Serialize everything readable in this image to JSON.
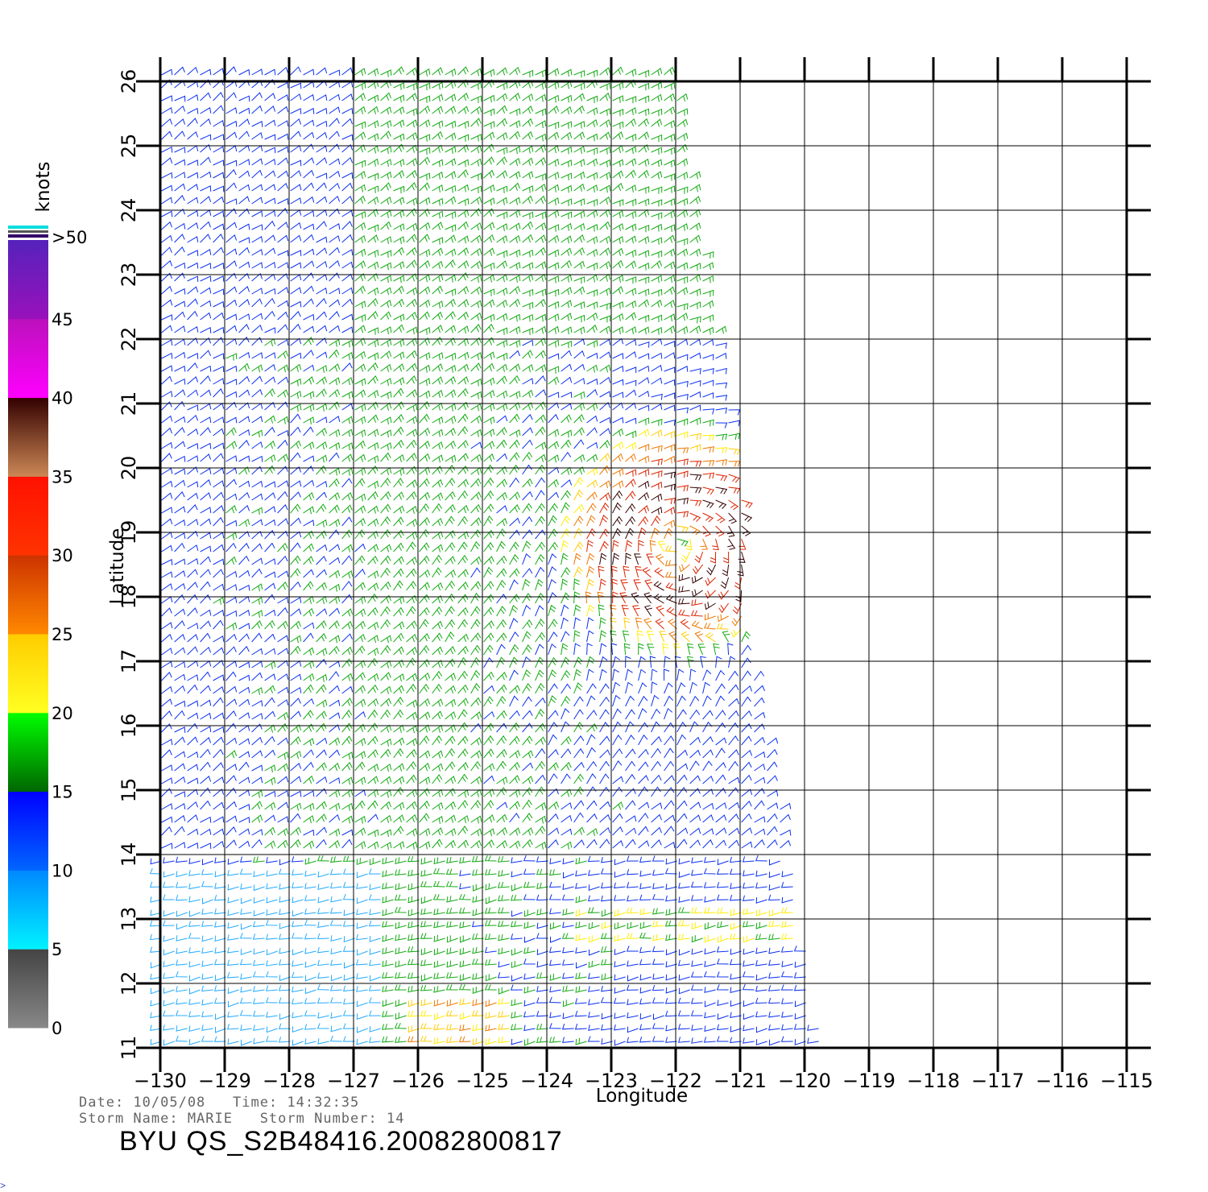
{
  "colorbar": {
    "unit": "knots",
    "labels": [
      "0",
      "5",
      "10",
      "15",
      "20",
      "25",
      "30",
      "35",
      "40",
      "45",
      ">50"
    ],
    "stops": [
      {
        "from": 0,
        "to": 5,
        "top": "#444444",
        "bottom": "#888888"
      },
      {
        "from": 5,
        "to": 10,
        "top": "#0088ff",
        "bottom": "#00f2ff"
      },
      {
        "from": 10,
        "to": 15,
        "top": "#0000ff",
        "bottom": "#0066ff"
      },
      {
        "from": 15,
        "to": 20,
        "top": "#00ff00",
        "bottom": "#006600"
      },
      {
        "from": 20,
        "to": 25,
        "top": "#ffcc00",
        "bottom": "#ffff22"
      },
      {
        "from": 25,
        "to": 30,
        "top": "#cc3300",
        "bottom": "#ff8800"
      },
      {
        "from": 30,
        "to": 35,
        "top": "#ff1100",
        "bottom": "#ff3300"
      },
      {
        "from": 35,
        "to": 40,
        "top": "#330000",
        "bottom": "#cc8855"
      },
      {
        "from": 40,
        "to": 45,
        "top": "#bb11bb",
        "bottom": "#ff00ff"
      },
      {
        "from": 45,
        "to": 50,
        "top": "#5522bb",
        "bottom": "#9911bb"
      }
    ]
  },
  "map": {
    "lon_range": [
      -130,
      -115
    ],
    "lat_range": [
      11,
      26
    ],
    "lon_ticks": [
      -130,
      -129,
      -128,
      -127,
      -126,
      -125,
      -124,
      -123,
      -122,
      -121,
      -120,
      -119,
      -118,
      -117,
      -116,
      -115
    ],
    "lat_ticks": [
      11,
      12,
      13,
      14,
      15,
      16,
      17,
      18,
      19,
      20,
      21,
      22,
      23,
      24,
      25,
      26
    ],
    "xlabel": "Longitude",
    "ylabel": "Latitude",
    "storm_center": {
      "lon": -122.0,
      "lat": 18.85
    },
    "swath_east_edge": [
      {
        "lat": 26,
        "lon": -122.0
      },
      {
        "lat": 23,
        "lon": -121.5
      },
      {
        "lat": 20,
        "lon": -121.0
      },
      {
        "lat": 17,
        "lon": -120.8
      },
      {
        "lat": 14,
        "lon": -120.2
      },
      {
        "lat": 11,
        "lon": -119.7
      }
    ]
  },
  "info": {
    "line1": "Date: 10/05/08   Time: 14:32:35",
    "line2": "Storm Name: MARIE   Storm Number: 14"
  },
  "title": "BYU QS_S2B48416.20082800817",
  "corner_mark": ">"
}
